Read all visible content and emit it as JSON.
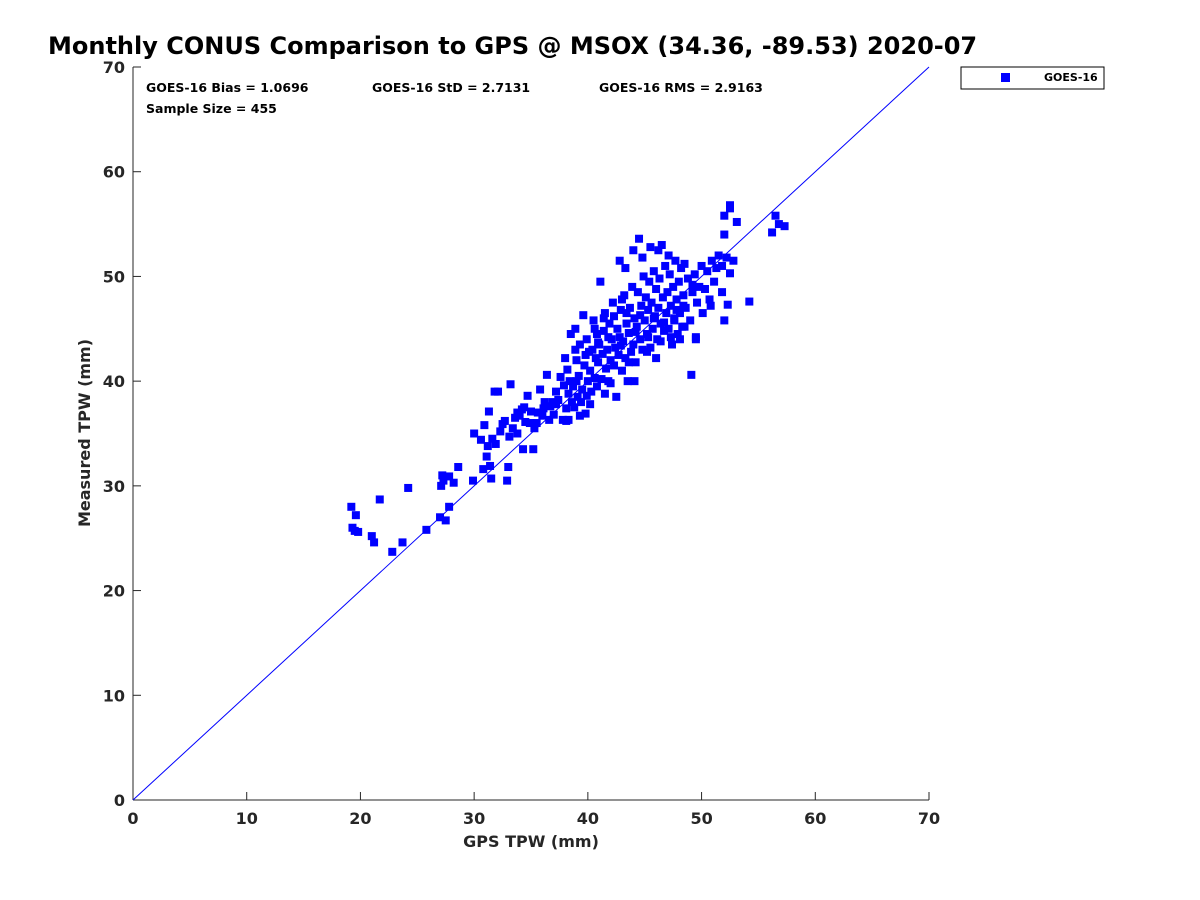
{
  "chart_data": {
    "type": "scatter",
    "title": "Monthly CONUS Comparison to GPS @ MSOX (34.36, -89.53) 2020-07",
    "xlabel": "GPS TPW (mm)",
    "ylabel": "Measured TPW (mm)",
    "xlim": [
      0,
      70
    ],
    "ylim": [
      0,
      70
    ],
    "xticks": [
      0,
      10,
      20,
      30,
      40,
      50,
      60,
      70
    ],
    "yticks": [
      0,
      10,
      20,
      30,
      40,
      50,
      60,
      70
    ],
    "grid": false,
    "legend_position": "top-right (outside plot)",
    "reference_line": {
      "type": "1:1",
      "from": [
        0,
        0
      ],
      "to": [
        70,
        70
      ],
      "color": "#0000ff"
    },
    "stats": {
      "bias": "GOES-16 Bias = 1.0696",
      "std": "GOES-16 StD = 2.7131",
      "rms": "GOES-16 RMS = 2.9163",
      "sample": "Sample Size = 455"
    },
    "series": [
      {
        "name": "GOES-16",
        "color": "#0000ff",
        "marker": "square",
        "points": [
          [
            19.2,
            28.0
          ],
          [
            19.3,
            26.0
          ],
          [
            19.5,
            25.7
          ],
          [
            19.6,
            27.2
          ],
          [
            19.8,
            25.6
          ],
          [
            21.0,
            25.2
          ],
          [
            21.2,
            24.6
          ],
          [
            21.7,
            28.7
          ],
          [
            22.8,
            23.7
          ],
          [
            23.7,
            24.6
          ],
          [
            24.2,
            29.8
          ],
          [
            25.8,
            25.8
          ],
          [
            27.0,
            27.0
          ],
          [
            27.1,
            30.0
          ],
          [
            27.2,
            31.0
          ],
          [
            27.3,
            30.5
          ],
          [
            27.5,
            26.7
          ],
          [
            27.8,
            30.9
          ],
          [
            27.8,
            28.0
          ],
          [
            28.2,
            30.3
          ],
          [
            28.6,
            31.8
          ],
          [
            29.9,
            30.5
          ],
          [
            30.0,
            35.0
          ],
          [
            30.6,
            34.4
          ],
          [
            30.8,
            31.6
          ],
          [
            30.9,
            35.8
          ],
          [
            31.1,
            32.8
          ],
          [
            31.2,
            33.8
          ],
          [
            31.3,
            37.1
          ],
          [
            31.4,
            31.9
          ],
          [
            31.5,
            30.7
          ],
          [
            31.6,
            34.5
          ],
          [
            31.8,
            39.0
          ],
          [
            31.9,
            34.0
          ],
          [
            32.1,
            39.0
          ],
          [
            32.3,
            35.2
          ],
          [
            32.5,
            35.9
          ],
          [
            32.7,
            36.2
          ],
          [
            32.9,
            30.5
          ],
          [
            33.0,
            31.8
          ],
          [
            33.1,
            34.7
          ],
          [
            33.2,
            39.7
          ],
          [
            33.4,
            35.5
          ],
          [
            33.6,
            36.5
          ],
          [
            33.8,
            35.0
          ],
          [
            34.0,
            36.7
          ],
          [
            34.2,
            37.3
          ],
          [
            34.3,
            33.5
          ],
          [
            34.5,
            36.1
          ],
          [
            34.7,
            38.6
          ],
          [
            34.9,
            36.0
          ],
          [
            35.0,
            37.1
          ],
          [
            35.2,
            33.5
          ],
          [
            35.3,
            35.5
          ],
          [
            35.6,
            37.0
          ],
          [
            35.8,
            39.2
          ],
          [
            36.0,
            36.7
          ],
          [
            36.2,
            38.0
          ],
          [
            36.4,
            40.6
          ],
          [
            36.6,
            36.3
          ],
          [
            36.7,
            37.6
          ],
          [
            36.9,
            38.0
          ],
          [
            37.0,
            36.8
          ],
          [
            37.2,
            39.0
          ],
          [
            37.4,
            38.2
          ],
          [
            37.6,
            40.4
          ],
          [
            37.8,
            36.3
          ],
          [
            37.9,
            39.6
          ],
          [
            38.0,
            42.2
          ],
          [
            38.1,
            37.4
          ],
          [
            38.2,
            41.1
          ],
          [
            38.3,
            36.3
          ],
          [
            38.4,
            40.0
          ],
          [
            38.5,
            44.5
          ],
          [
            38.6,
            38.0
          ],
          [
            38.7,
            39.5
          ],
          [
            38.8,
            37.5
          ],
          [
            38.9,
            45.0
          ],
          [
            39.0,
            42.0
          ],
          [
            39.1,
            38.5
          ],
          [
            39.2,
            40.5
          ],
          [
            39.3,
            43.5
          ],
          [
            39.4,
            38.0
          ],
          [
            39.5,
            39.2
          ],
          [
            39.6,
            46.3
          ],
          [
            39.7,
            41.5
          ],
          [
            39.8,
            36.9
          ],
          [
            39.9,
            44.0
          ],
          [
            40.0,
            40.0
          ],
          [
            40.1,
            42.8
          ],
          [
            40.2,
            41.0
          ],
          [
            40.3,
            39.0
          ],
          [
            40.4,
            43.0
          ],
          [
            40.5,
            45.8
          ],
          [
            40.6,
            40.3
          ],
          [
            40.7,
            42.2
          ],
          [
            40.8,
            44.5
          ],
          [
            40.9,
            41.8
          ],
          [
            41.0,
            43.5
          ],
          [
            41.1,
            49.5
          ],
          [
            41.2,
            40.2
          ],
          [
            41.3,
            42.6
          ],
          [
            41.4,
            44.8
          ],
          [
            41.5,
            46.5
          ],
          [
            41.6,
            41.2
          ],
          [
            41.7,
            43.0
          ],
          [
            41.8,
            40.0
          ],
          [
            41.9,
            45.5
          ],
          [
            42.0,
            42.0
          ],
          [
            42.1,
            44.0
          ],
          [
            42.2,
            47.5
          ],
          [
            42.3,
            41.5
          ],
          [
            42.4,
            43.2
          ],
          [
            42.5,
            38.5
          ],
          [
            42.6,
            45.0
          ],
          [
            42.7,
            42.5
          ],
          [
            42.8,
            44.2
          ],
          [
            42.9,
            46.8
          ],
          [
            43.0,
            41.0
          ],
          [
            43.1,
            43.8
          ],
          [
            43.2,
            48.2
          ],
          [
            43.3,
            42.2
          ],
          [
            43.4,
            45.5
          ],
          [
            43.5,
            40.0
          ],
          [
            43.6,
            44.6
          ],
          [
            43.7,
            47.0
          ],
          [
            43.8,
            42.8
          ],
          [
            43.9,
            49.0
          ],
          [
            44.0,
            43.5
          ],
          [
            44.1,
            46.0
          ],
          [
            44.2,
            41.8
          ],
          [
            44.3,
            45.2
          ],
          [
            44.4,
            48.5
          ],
          [
            44.5,
            53.6
          ],
          [
            44.6,
            44.0
          ],
          [
            44.7,
            47.2
          ],
          [
            44.8,
            43.0
          ],
          [
            44.9,
            50.0
          ],
          [
            45.0,
            45.8
          ],
          [
            45.1,
            48.0
          ],
          [
            45.2,
            44.5
          ],
          [
            45.3,
            46.8
          ],
          [
            45.4,
            49.5
          ],
          [
            45.5,
            43.2
          ],
          [
            45.6,
            47.5
          ],
          [
            45.7,
            45.0
          ],
          [
            45.8,
            50.5
          ],
          [
            45.9,
            46.2
          ],
          [
            46.0,
            48.8
          ],
          [
            46.1,
            44.0
          ],
          [
            46.2,
            47.0
          ],
          [
            46.3,
            49.8
          ],
          [
            46.4,
            45.5
          ],
          [
            46.5,
            53.0
          ],
          [
            46.6,
            48.0
          ],
          [
            46.7,
            44.8
          ],
          [
            46.8,
            51.0
          ],
          [
            46.9,
            46.5
          ],
          [
            47.0,
            48.5
          ],
          [
            47.1,
            45.0
          ],
          [
            47.2,
            50.2
          ],
          [
            47.3,
            47.2
          ],
          [
            47.4,
            43.5
          ],
          [
            47.5,
            49.0
          ],
          [
            47.6,
            46.0
          ],
          [
            47.7,
            51.5
          ],
          [
            47.8,
            47.8
          ],
          [
            47.9,
            44.5
          ],
          [
            48.0,
            49.5
          ],
          [
            48.1,
            46.5
          ],
          [
            48.2,
            50.8
          ],
          [
            48.3,
            45.2
          ],
          [
            48.4,
            48.2
          ],
          [
            48.5,
            51.2
          ],
          [
            48.6,
            47.0
          ],
          [
            48.8,
            49.8
          ],
          [
            49.0,
            45.8
          ],
          [
            49.1,
            40.6
          ],
          [
            49.2,
            48.5
          ],
          [
            49.4,
            50.2
          ],
          [
            49.5,
            44.2
          ],
          [
            49.6,
            47.5
          ],
          [
            49.8,
            49.0
          ],
          [
            50.0,
            51.0
          ],
          [
            50.1,
            46.5
          ],
          [
            50.3,
            48.8
          ],
          [
            50.5,
            50.5
          ],
          [
            50.7,
            47.8
          ],
          [
            50.9,
            51.5
          ],
          [
            51.1,
            49.5
          ],
          [
            51.3,
            50.8
          ],
          [
            51.5,
            52.0
          ],
          [
            51.8,
            51.0
          ],
          [
            52.0,
            45.8
          ],
          [
            52.0,
            54.0
          ],
          [
            52.0,
            55.8
          ],
          [
            52.2,
            51.8
          ],
          [
            52.3,
            47.3
          ],
          [
            52.5,
            56.8
          ],
          [
            52.5,
            56.5
          ],
          [
            52.8,
            51.5
          ],
          [
            53.1,
            55.2
          ],
          [
            54.2,
            47.6
          ],
          [
            56.2,
            54.2
          ],
          [
            56.5,
            55.8
          ],
          [
            56.8,
            55.0
          ],
          [
            57.3,
            54.8
          ],
          [
            52.5,
            50.3
          ],
          [
            51.8,
            48.5
          ],
          [
            38.3,
            38.8
          ],
          [
            39.0,
            40.0
          ],
          [
            40.2,
            37.8
          ],
          [
            41.5,
            38.8
          ],
          [
            43.0,
            47.8
          ],
          [
            44.0,
            52.5
          ],
          [
            42.8,
            51.5
          ],
          [
            43.3,
            50.8
          ],
          [
            44.8,
            51.8
          ],
          [
            45.5,
            52.8
          ],
          [
            46.2,
            52.5
          ],
          [
            47.1,
            52.0
          ],
          [
            47.8,
            46.8
          ],
          [
            48.5,
            45.2
          ],
          [
            49.5,
            44.0
          ],
          [
            50.8,
            47.2
          ],
          [
            46.0,
            42.2
          ],
          [
            45.2,
            42.8
          ],
          [
            44.1,
            40.0
          ],
          [
            43.6,
            41.8
          ],
          [
            42.0,
            39.8
          ],
          [
            40.8,
            39.5
          ],
          [
            39.9,
            38.6
          ],
          [
            39.3,
            36.7
          ],
          [
            38.1,
            36.2
          ],
          [
            37.2,
            37.8
          ],
          [
            36.1,
            37.4
          ],
          [
            35.5,
            36.0
          ],
          [
            34.4,
            37.5
          ],
          [
            33.8,
            37.0
          ],
          [
            40.6,
            45.0
          ],
          [
            41.4,
            46.0
          ],
          [
            42.3,
            46.2
          ],
          [
            43.4,
            46.5
          ],
          [
            44.6,
            46.3
          ],
          [
            45.8,
            46.0
          ],
          [
            46.7,
            45.6
          ],
          [
            47.6,
            45.8
          ],
          [
            48.4,
            47.2
          ],
          [
            49.2,
            49.2
          ],
          [
            38.9,
            43.0
          ],
          [
            39.8,
            42.5
          ],
          [
            40.9,
            43.7
          ],
          [
            41.8,
            44.2
          ],
          [
            42.9,
            43.4
          ],
          [
            44.2,
            44.7
          ],
          [
            45.3,
            44.2
          ],
          [
            46.4,
            43.8
          ],
          [
            47.3,
            44.2
          ],
          [
            48.1,
            44.0
          ]
        ]
      }
    ]
  }
}
